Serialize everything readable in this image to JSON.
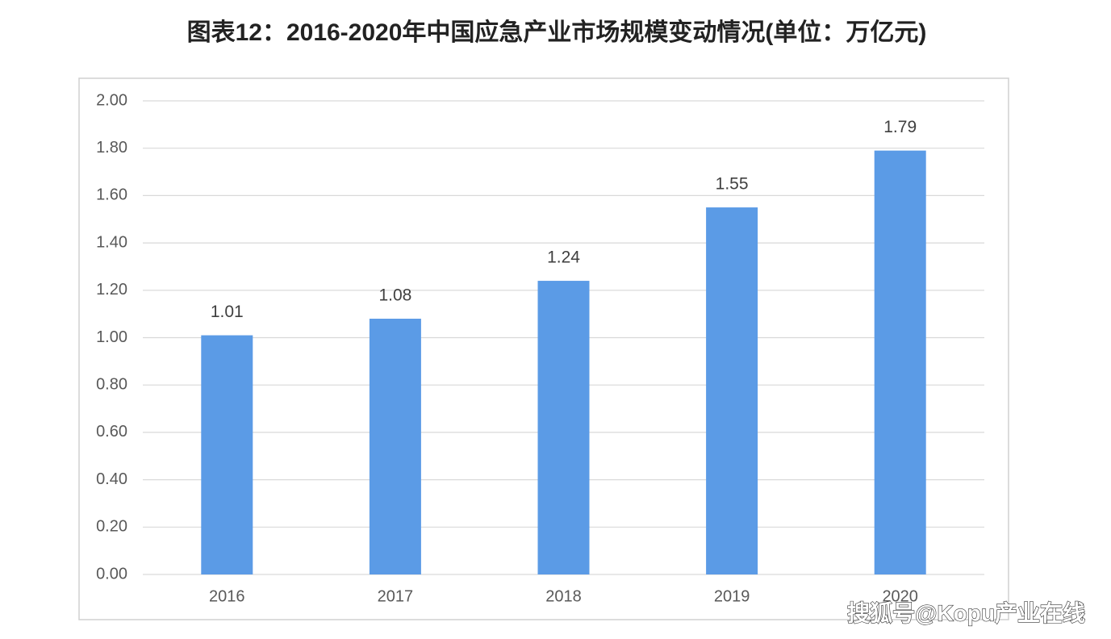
{
  "chart_data": {
    "type": "bar",
    "title": "图表12：2016-2020年中国应急产业市场规模变动情况(单位：万亿元)",
    "categories": [
      "2016",
      "2017",
      "2018",
      "2019",
      "2020"
    ],
    "values": [
      1.01,
      1.08,
      1.24,
      1.55,
      1.79
    ],
    "color": "#5b9be6",
    "ylim": [
      0,
      2
    ],
    "yticks": [
      {
        "value": 0,
        "label": "0.00"
      },
      {
        "value": 0.2,
        "label": "0.20"
      },
      {
        "value": 0.4,
        "label": "0.40"
      },
      {
        "value": 0.6,
        "label": "0.60"
      },
      {
        "value": 0.8,
        "label": "0.80"
      },
      {
        "value": 1,
        "label": "1.00"
      },
      {
        "value": 1.2,
        "label": "1.20"
      },
      {
        "value": 1.4,
        "label": "1.40"
      },
      {
        "value": 1.6,
        "label": "1.60"
      },
      {
        "value": 1.8,
        "label": "1.80"
      },
      {
        "value": 2,
        "label": "2.00"
      }
    ],
    "grid": true,
    "watermark": "搜狐号@Kopu产业在线"
  }
}
